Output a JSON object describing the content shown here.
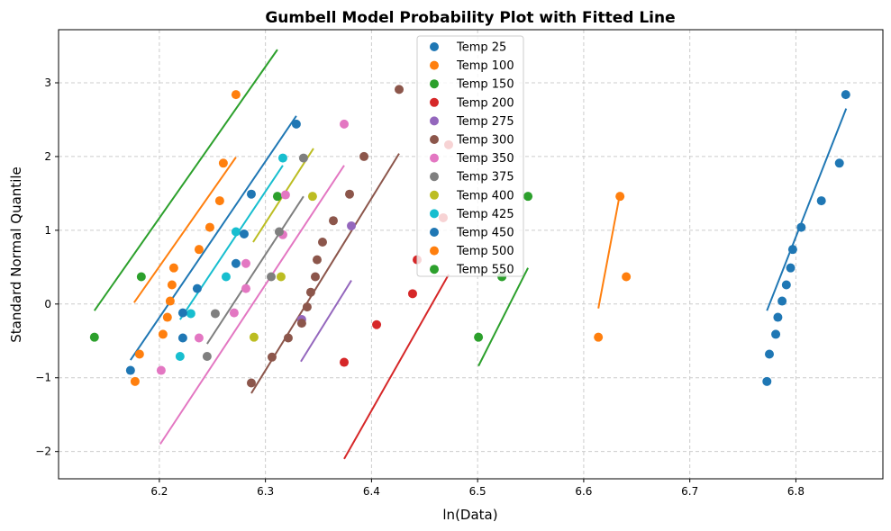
{
  "chart_data": {
    "type": "scatter",
    "title": "Gumbell Model Probability Plot with Fitted Line",
    "xlabel": "ln(Data)",
    "ylabel": "Standard Normal Quantile",
    "xlim": [
      6.105,
      6.882
    ],
    "ylim": [
      -2.37,
      3.72
    ],
    "xticks": [
      6.2,
      6.3,
      6.4,
      6.5,
      6.6,
      6.7,
      6.8
    ],
    "xtick_labels": [
      "6.2",
      "6.3",
      "6.4",
      "6.5",
      "6.6",
      "6.7",
      "6.8"
    ],
    "yticks": [
      -2,
      -1,
      0,
      1,
      2,
      3
    ],
    "ytick_labels": [
      "−2",
      "−1",
      "0",
      "1",
      "2",
      "3"
    ],
    "grid": true,
    "legend_position": "top-center",
    "series": [
      {
        "name": "Temp 25",
        "color": "#1f77b4",
        "x": [
          6.7727,
          6.775,
          6.781,
          6.783,
          6.787,
          6.791,
          6.795,
          6.797,
          6.805,
          6.824,
          6.841,
          6.847
        ],
        "y": [
          -1.05,
          -0.68,
          -0.41,
          -0.18,
          0.04,
          0.26,
          0.49,
          0.74,
          1.04,
          1.4,
          1.91,
          2.84
        ],
        "fit": {
          "x": [
            6.7727,
            6.8474
          ],
          "y": [
            -0.09,
            2.65
          ]
        }
      },
      {
        "name": "Temp 100",
        "color": "#ff7f0e",
        "x": [
          6.1771,
          6.1813,
          6.2034,
          6.2076,
          6.2102,
          6.2119,
          6.2136,
          6.2374,
          6.2476,
          6.2569,
          6.2603,
          6.2722
        ],
        "y": [
          -1.05,
          -0.68,
          -0.41,
          -0.18,
          0.04,
          0.26,
          0.49,
          0.74,
          1.04,
          1.4,
          1.91,
          2.84
        ],
        "fit": {
          "x": [
            6.1762,
            6.2722
          ],
          "y": [
            0.02,
            1.99
          ]
        }
      },
      {
        "name": "Temp 150",
        "color": "#2ca02c",
        "x": [
          6.1388,
          6.183,
          6.3113
        ],
        "y": [
          -0.45,
          0.37,
          1.46
        ],
        "fit": {
          "x": [
            6.1388,
            6.3113
          ],
          "y": [
            -0.09,
            3.45
          ]
        }
      },
      {
        "name": "Temp 200",
        "color": "#d62728",
        "x": [
          6.3742,
          6.4048,
          6.4387,
          6.443,
          6.4676,
          6.4727
        ],
        "y": [
          -0.79,
          -0.28,
          0.14,
          0.6,
          1.17,
          2.16
        ],
        "fit": {
          "x": [
            6.3742,
            6.4727
          ],
          "y": [
            -2.1,
            0.4
          ]
        }
      },
      {
        "name": "Temp 275",
        "color": "#9467bd",
        "x": [
          6.3342,
          6.381
        ],
        "y": [
          -0.21,
          1.06
        ],
        "fit": {
          "x": [
            6.3334,
            6.381
          ],
          "y": [
            -0.78,
            0.32
          ]
        }
      },
      {
        "name": "Temp 300",
        "color": "#8c564b",
        "x": [
          6.2867,
          6.3062,
          6.3215,
          6.3342,
          6.3393,
          6.3427,
          6.347,
          6.3487,
          6.3538,
          6.364,
          6.3793,
          6.3929,
          6.426
        ],
        "y": [
          -1.07,
          -0.72,
          -0.46,
          -0.26,
          -0.04,
          0.16,
          0.37,
          0.6,
          0.84,
          1.13,
          1.49,
          2.0,
          2.91
        ],
        "fit": {
          "x": [
            6.2867,
            6.426
          ],
          "y": [
            -1.21,
            2.04
          ]
        }
      },
      {
        "name": "Temp 350",
        "color": "#e377c2",
        "x": [
          6.2017,
          6.2374,
          6.2705,
          6.2816,
          6.2816,
          6.3164,
          6.3189,
          6.3742
        ],
        "y": [
          -0.9,
          -0.46,
          -0.12,
          0.21,
          0.55,
          0.94,
          1.48,
          2.44
        ],
        "fit": {
          "x": [
            6.2008,
            6.3742
          ],
          "y": [
            -1.9,
            1.88
          ]
        }
      },
      {
        "name": "Temp 375",
        "color": "#7f7f7f",
        "x": [
          6.245,
          6.2527,
          6.3054,
          6.313,
          6.3359
        ],
        "y": [
          -0.71,
          -0.13,
          0.37,
          0.98,
          1.98
        ],
        "fit": {
          "x": [
            6.245,
            6.3359
          ],
          "y": [
            -0.54,
            1.46
          ]
        }
      },
      {
        "name": "Temp 400",
        "color": "#bcbd22",
        "x": [
          6.2892,
          6.3147,
          6.3444
        ],
        "y": [
          -0.45,
          0.37,
          1.46
        ],
        "fit": {
          "x": [
            6.2884,
            6.3453
          ],
          "y": [
            0.84,
            2.11
          ]
        }
      },
      {
        "name": "Temp 425",
        "color": "#17becf",
        "x": [
          6.2195,
          6.2297,
          6.2629,
          6.2722,
          6.3164
        ],
        "y": [
          -0.71,
          -0.13,
          0.37,
          0.98,
          1.98
        ],
        "fit": {
          "x": [
            6.2195,
            6.3164
          ],
          "y": [
            -0.21,
            1.88
          ]
        }
      },
      {
        "name": "Temp 450",
        "color": "#1f77b4",
        "x": [
          6.1728,
          6.2221,
          6.2221,
          6.2357,
          6.2722,
          6.2799,
          6.2867,
          6.3291
        ],
        "y": [
          -0.9,
          -0.46,
          -0.12,
          0.21,
          0.55,
          0.95,
          1.49,
          2.44
        ],
        "fit": {
          "x": [
            6.1728,
            6.3291
          ],
          "y": [
            -0.76,
            2.55
          ]
        }
      },
      {
        "name": "Temp 500",
        "color": "#ff7f0e",
        "x": [
          6.6138,
          6.6401,
          6.6342
        ],
        "y": [
          -0.45,
          0.37,
          1.46
        ],
        "fit": {
          "x": [
            6.6138,
            6.6342
          ],
          "y": [
            -0.06,
            1.5
          ]
        }
      },
      {
        "name": "Temp 550",
        "color": "#2ca02c",
        "x": [
          6.5008,
          6.5229,
          6.5475
        ],
        "y": [
          -0.45,
          0.37,
          1.46
        ],
        "fit": {
          "x": [
            6.5008,
            6.5475
          ],
          "y": [
            -0.84,
            0.49
          ]
        }
      }
    ]
  }
}
